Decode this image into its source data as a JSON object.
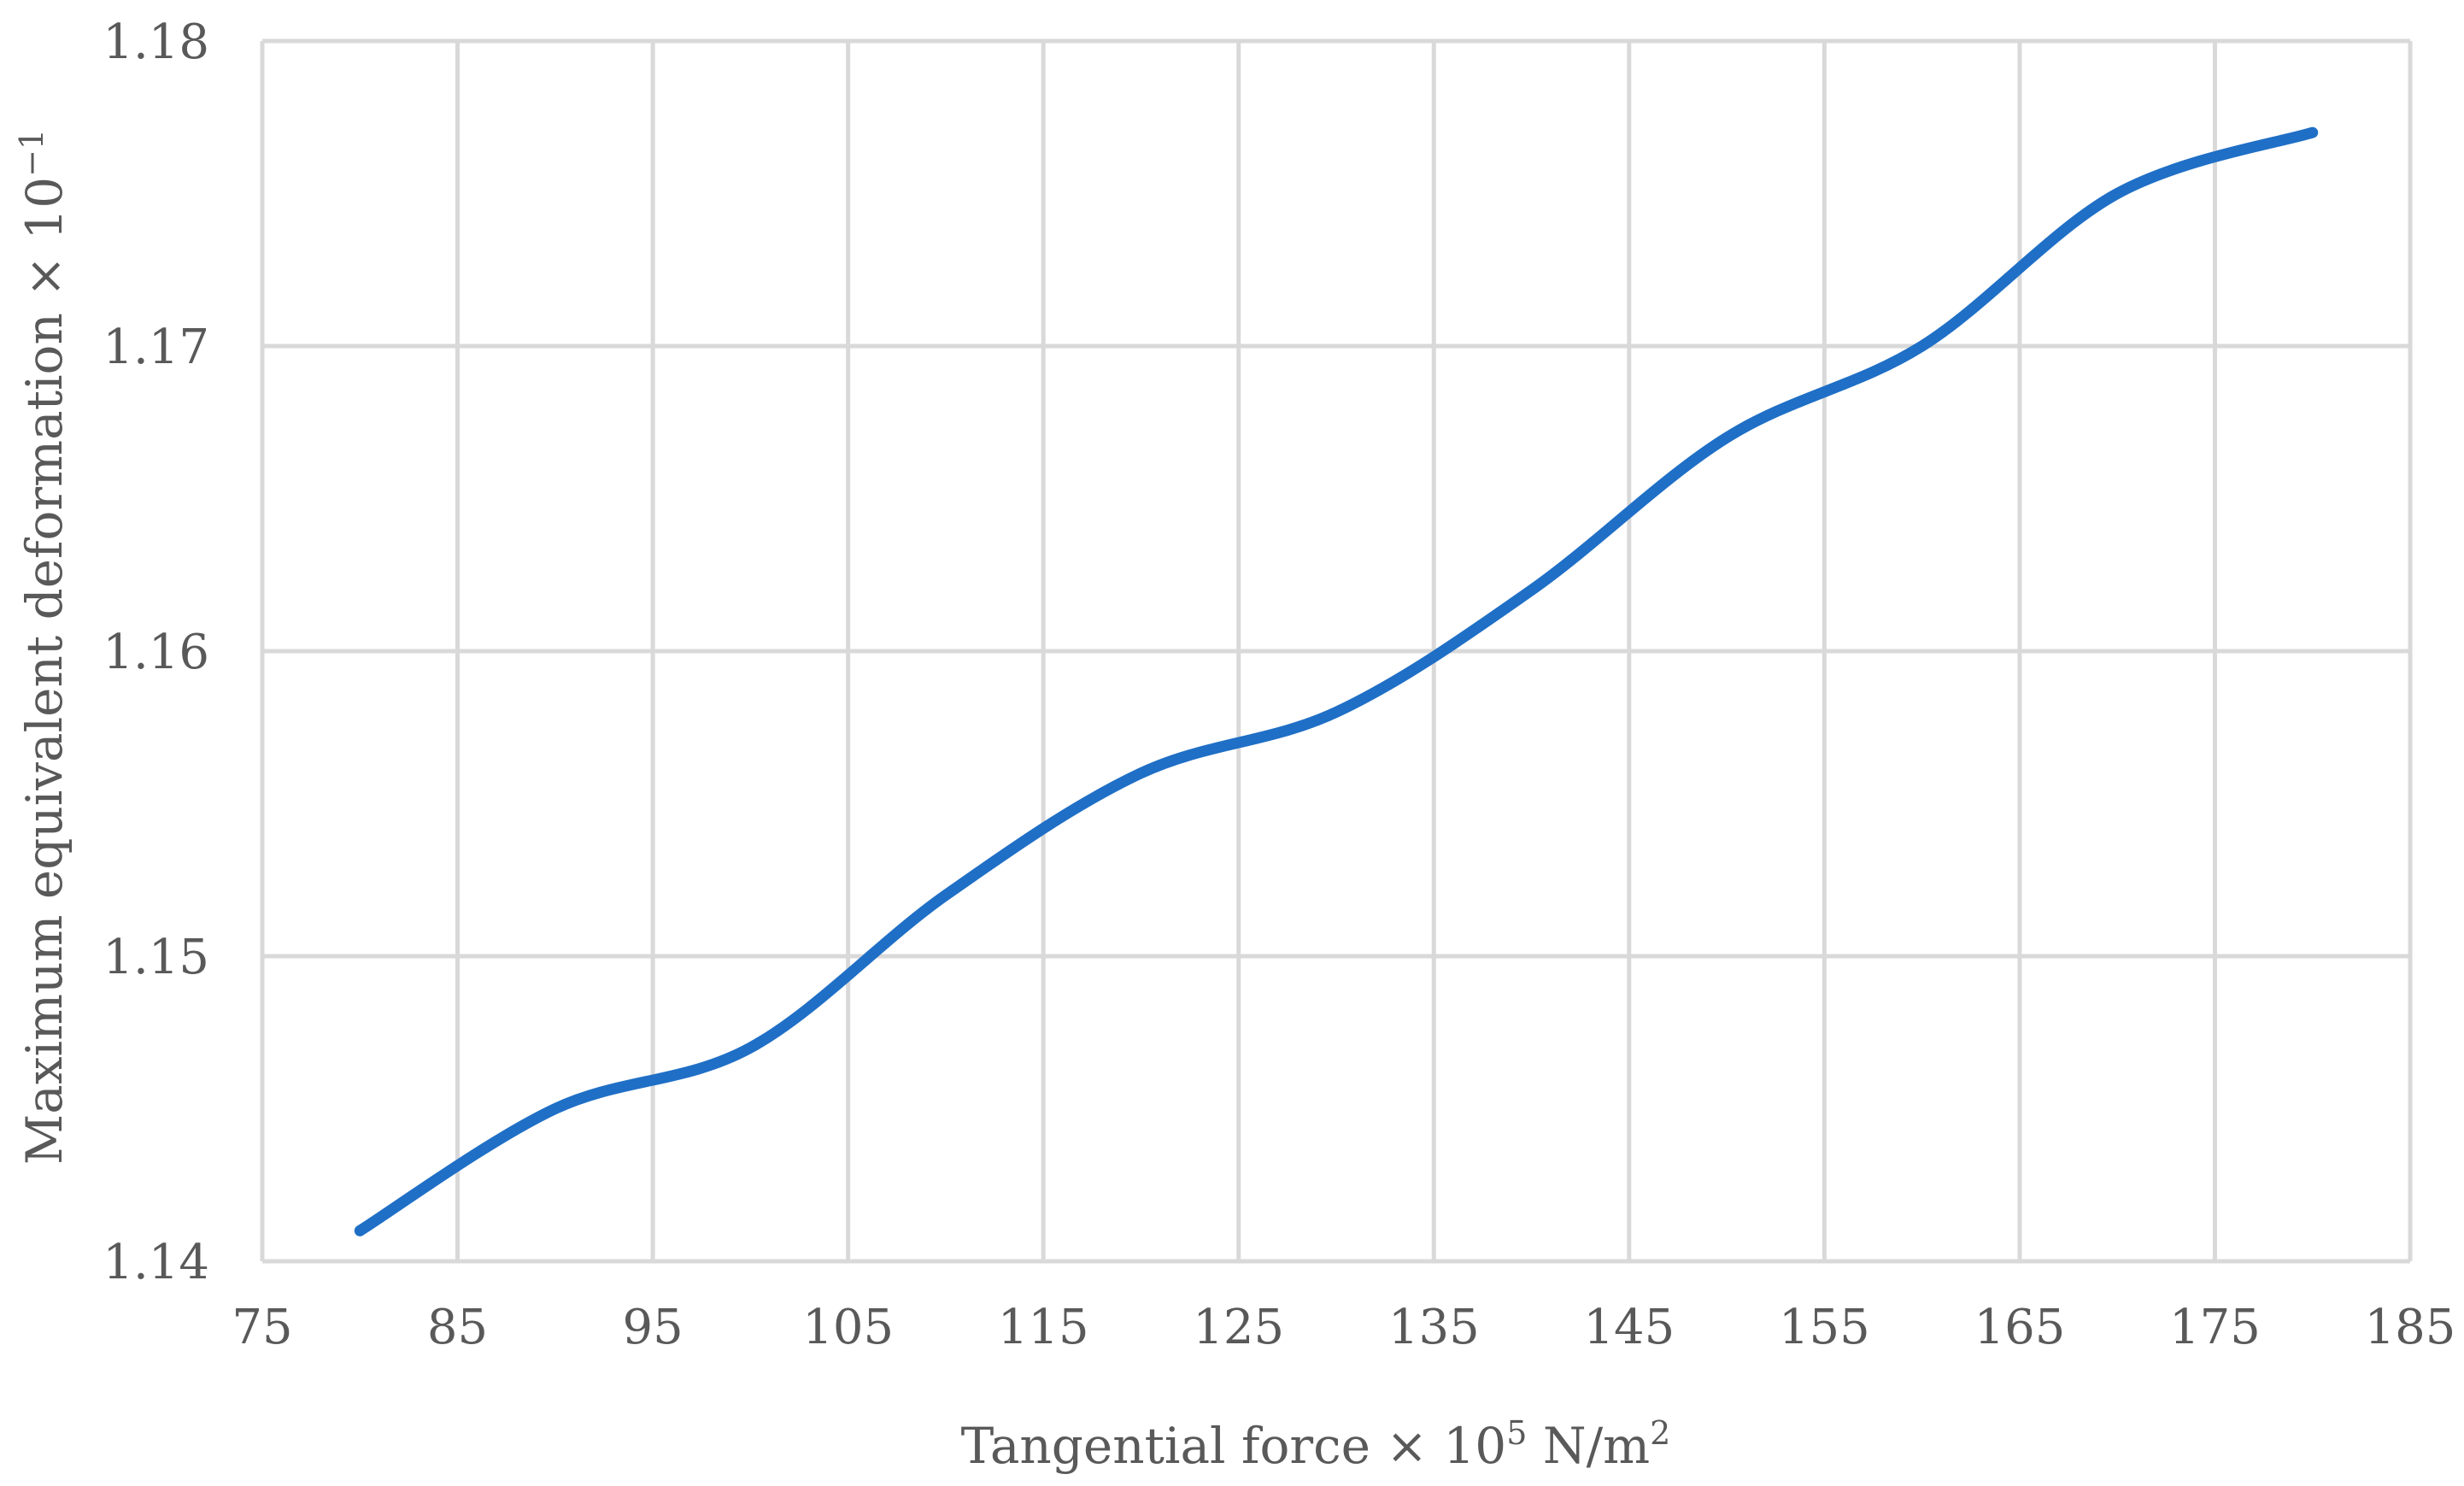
{
  "chart_data": {
    "type": "line",
    "title": "",
    "xlabel": {
      "main": "Tangential force × 10",
      "sup": "5",
      "unit": " N/m",
      "unit_sup": "2"
    },
    "ylabel": {
      "main": "Maximum equivalent deformation × 10",
      "sup": "−1"
    },
    "xlim": [
      75,
      185
    ],
    "ylim": [
      1.14,
      1.18
    ],
    "xticks": [
      "75",
      "85",
      "95",
      "105",
      "115",
      "125",
      "135",
      "145",
      "155",
      "165",
      "175",
      "185"
    ],
    "yticks": [
      "1.14",
      "1.15",
      "1.16",
      "1.17",
      "1.18"
    ],
    "grid": true,
    "legend": "none",
    "series": [
      {
        "color": "#1f6fc6",
        "x": [
          80,
          90,
          100,
          110,
          120,
          130,
          140,
          150,
          160,
          170,
          180
        ],
        "y": [
          1.141,
          1.145,
          1.147,
          1.152,
          1.156,
          1.158,
          1.162,
          1.167,
          1.17,
          1.175,
          1.177
        ]
      }
    ]
  }
}
